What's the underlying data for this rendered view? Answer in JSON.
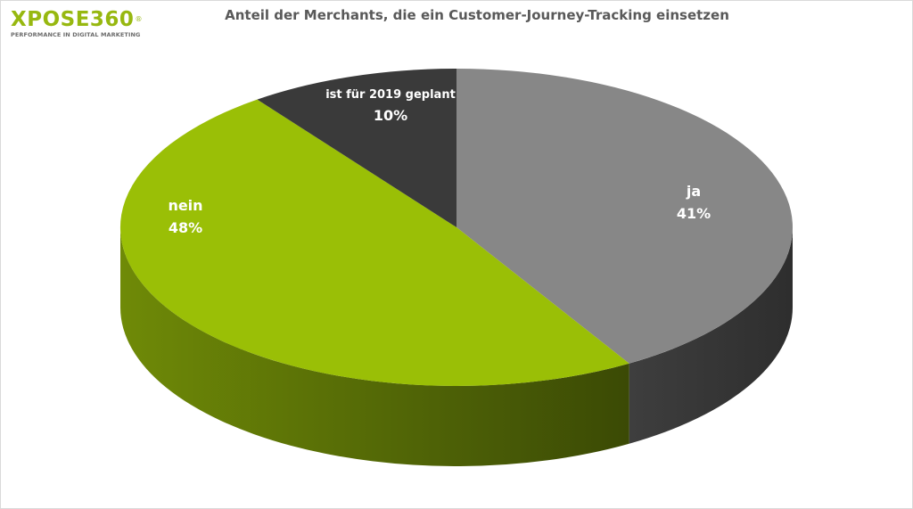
{
  "brand": {
    "name": "XPOSE360",
    "registered_mark": "®",
    "tagline": "PERFORMANCE IN DIGITAL MARKETING"
  },
  "chart_data": {
    "type": "pie",
    "title": "Anteil der Merchants, die ein Customer-Journey-Tracking einsetzen",
    "style": "3d",
    "slices": [
      {
        "label": "ja",
        "value": 41,
        "value_label": "41%",
        "color": "#878787"
      },
      {
        "label": "nein",
        "value": 48,
        "value_label": "48%",
        "color": "#9abf06"
      },
      {
        "label": "ist für 2019 geplant",
        "value": 10,
        "value_label": "10%",
        "color": "#3a3a3a"
      }
    ],
    "legend": "none"
  }
}
